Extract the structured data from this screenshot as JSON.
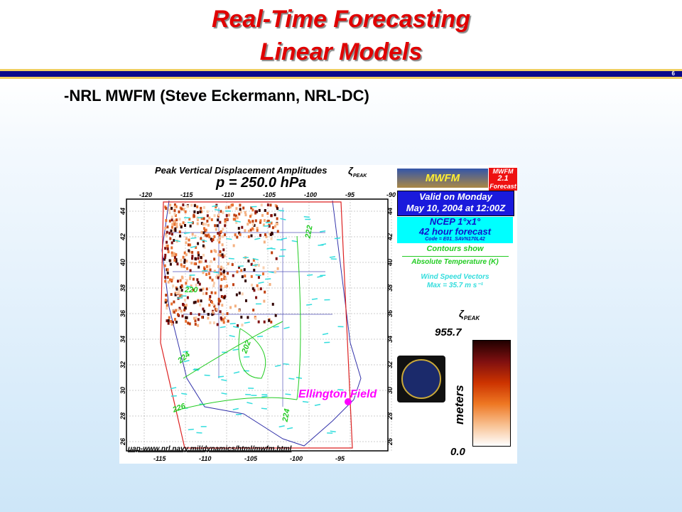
{
  "slide": {
    "title_line1": "Real-Time Forecasting",
    "title_line2": "Linear Models",
    "page_number": "6",
    "bullet": "-NRL MWFM (Steve Eckermann, NRL-DC)"
  },
  "figure": {
    "title": "Peak Vertical Displacement Amplitudes",
    "zeta_label": "ζ",
    "zeta_sub": "PEAK",
    "pressure": "p = 250.0 hPa",
    "top_lon_ticks": [
      "-120",
      "-115",
      "-110",
      "-105",
      "-100",
      "-95",
      "-90"
    ],
    "bottom_lon_ticks": [
      "-115",
      "-110",
      "-105",
      "-100",
      "-95"
    ],
    "lat_ticks": [
      "44",
      "42",
      "40",
      "38",
      "36",
      "34",
      "32",
      "30",
      "28",
      "26"
    ],
    "contour_labels": [
      "222",
      "224",
      "202",
      "224",
      "226",
      "224",
      "220"
    ],
    "location_label": "Ellington Field",
    "url": "uap-www.nrl.navy.mil/dynamics/html/mwfm.html",
    "logo": {
      "name": "MWFM",
      "badge_line1": "MWFM",
      "badge_line2": "2.1",
      "badge_line3": "Forecast"
    },
    "valid_line1": "Valid on Monday",
    "valid_line2": "May 10, 2004 at 12:00Z",
    "model_line1": "NCEP 1°x1°",
    "model_line2": "42 hour forecast",
    "model_code": "Code = E01_SAVN170L42",
    "contours_show": "Contours show",
    "contour_field": "Absolute Temperature (K)",
    "vectors_line1": "Wind Speed Vectors",
    "vectors_line2": "Max = 35.7 m s⁻¹",
    "colorbar": {
      "max": "955.7",
      "min": "0.0",
      "unit": "meters"
    },
    "colors": {
      "title": "#e00000",
      "valid_box": "#1a1adc",
      "model_box": "#00ffff",
      "contours": "#22cc22",
      "vectors": "#33dddd",
      "location": "#ff00ff"
    }
  }
}
